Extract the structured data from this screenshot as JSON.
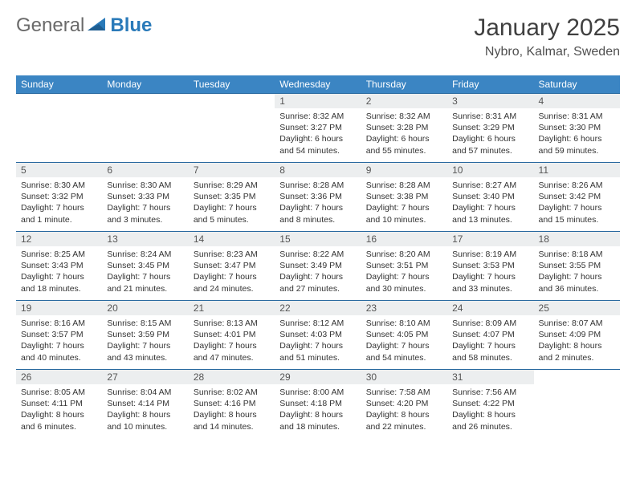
{
  "brand": {
    "part1": "General",
    "part2": "Blue"
  },
  "title": "January 2025",
  "location": "Nybro, Kalmar, Sweden",
  "colors": {
    "header_bg": "#3b85c3",
    "row_border": "#2a6aa0",
    "daynum_bg": "#eceeef",
    "text": "#333333",
    "logo_gray": "#6a6a6a",
    "logo_blue": "#2a7ab9"
  },
  "day_labels": [
    "Sunday",
    "Monday",
    "Tuesday",
    "Wednesday",
    "Thursday",
    "Friday",
    "Saturday"
  ],
  "weeks": [
    [
      null,
      null,
      null,
      {
        "n": "1",
        "sunrise": "8:32 AM",
        "sunset": "3:27 PM",
        "daylight": "6 hours and 54 minutes."
      },
      {
        "n": "2",
        "sunrise": "8:32 AM",
        "sunset": "3:28 PM",
        "daylight": "6 hours and 55 minutes."
      },
      {
        "n": "3",
        "sunrise": "8:31 AM",
        "sunset": "3:29 PM",
        "daylight": "6 hours and 57 minutes."
      },
      {
        "n": "4",
        "sunrise": "8:31 AM",
        "sunset": "3:30 PM",
        "daylight": "6 hours and 59 minutes."
      }
    ],
    [
      {
        "n": "5",
        "sunrise": "8:30 AM",
        "sunset": "3:32 PM",
        "daylight": "7 hours and 1 minute."
      },
      {
        "n": "6",
        "sunrise": "8:30 AM",
        "sunset": "3:33 PM",
        "daylight": "7 hours and 3 minutes."
      },
      {
        "n": "7",
        "sunrise": "8:29 AM",
        "sunset": "3:35 PM",
        "daylight": "7 hours and 5 minutes."
      },
      {
        "n": "8",
        "sunrise": "8:28 AM",
        "sunset": "3:36 PM",
        "daylight": "7 hours and 8 minutes."
      },
      {
        "n": "9",
        "sunrise": "8:28 AM",
        "sunset": "3:38 PM",
        "daylight": "7 hours and 10 minutes."
      },
      {
        "n": "10",
        "sunrise": "8:27 AM",
        "sunset": "3:40 PM",
        "daylight": "7 hours and 13 minutes."
      },
      {
        "n": "11",
        "sunrise": "8:26 AM",
        "sunset": "3:42 PM",
        "daylight": "7 hours and 15 minutes."
      }
    ],
    [
      {
        "n": "12",
        "sunrise": "8:25 AM",
        "sunset": "3:43 PM",
        "daylight": "7 hours and 18 minutes."
      },
      {
        "n": "13",
        "sunrise": "8:24 AM",
        "sunset": "3:45 PM",
        "daylight": "7 hours and 21 minutes."
      },
      {
        "n": "14",
        "sunrise": "8:23 AM",
        "sunset": "3:47 PM",
        "daylight": "7 hours and 24 minutes."
      },
      {
        "n": "15",
        "sunrise": "8:22 AM",
        "sunset": "3:49 PM",
        "daylight": "7 hours and 27 minutes."
      },
      {
        "n": "16",
        "sunrise": "8:20 AM",
        "sunset": "3:51 PM",
        "daylight": "7 hours and 30 minutes."
      },
      {
        "n": "17",
        "sunrise": "8:19 AM",
        "sunset": "3:53 PM",
        "daylight": "7 hours and 33 minutes."
      },
      {
        "n": "18",
        "sunrise": "8:18 AM",
        "sunset": "3:55 PM",
        "daylight": "7 hours and 36 minutes."
      }
    ],
    [
      {
        "n": "19",
        "sunrise": "8:16 AM",
        "sunset": "3:57 PM",
        "daylight": "7 hours and 40 minutes."
      },
      {
        "n": "20",
        "sunrise": "8:15 AM",
        "sunset": "3:59 PM",
        "daylight": "7 hours and 43 minutes."
      },
      {
        "n": "21",
        "sunrise": "8:13 AM",
        "sunset": "4:01 PM",
        "daylight": "7 hours and 47 minutes."
      },
      {
        "n": "22",
        "sunrise": "8:12 AM",
        "sunset": "4:03 PM",
        "daylight": "7 hours and 51 minutes."
      },
      {
        "n": "23",
        "sunrise": "8:10 AM",
        "sunset": "4:05 PM",
        "daylight": "7 hours and 54 minutes."
      },
      {
        "n": "24",
        "sunrise": "8:09 AM",
        "sunset": "4:07 PM",
        "daylight": "7 hours and 58 minutes."
      },
      {
        "n": "25",
        "sunrise": "8:07 AM",
        "sunset": "4:09 PM",
        "daylight": "8 hours and 2 minutes."
      }
    ],
    [
      {
        "n": "26",
        "sunrise": "8:05 AM",
        "sunset": "4:11 PM",
        "daylight": "8 hours and 6 minutes."
      },
      {
        "n": "27",
        "sunrise": "8:04 AM",
        "sunset": "4:14 PM",
        "daylight": "8 hours and 10 minutes."
      },
      {
        "n": "28",
        "sunrise": "8:02 AM",
        "sunset": "4:16 PM",
        "daylight": "8 hours and 14 minutes."
      },
      {
        "n": "29",
        "sunrise": "8:00 AM",
        "sunset": "4:18 PM",
        "daylight": "8 hours and 18 minutes."
      },
      {
        "n": "30",
        "sunrise": "7:58 AM",
        "sunset": "4:20 PM",
        "daylight": "8 hours and 22 minutes."
      },
      {
        "n": "31",
        "sunrise": "7:56 AM",
        "sunset": "4:22 PM",
        "daylight": "8 hours and 26 minutes."
      },
      null
    ]
  ],
  "labels": {
    "sunrise": "Sunrise: ",
    "sunset": "Sunset: ",
    "daylight": "Daylight: "
  }
}
